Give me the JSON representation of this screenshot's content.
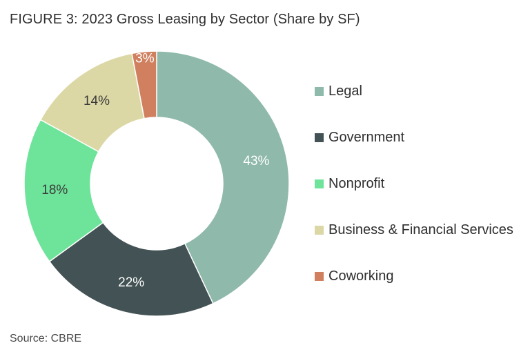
{
  "title": "FIGURE 3: 2023 Gross Leasing by Sector (Share by SF)",
  "source": "Source: CBRE",
  "chart_data": {
    "type": "pie",
    "variant": "donut",
    "title": "FIGURE 3: 2023 Gross Leasing by Sector (Share by SF)",
    "legend_position": "right",
    "series": [
      {
        "name": "Legal",
        "value": 43,
        "label": "43%",
        "color": "#8fb9aa",
        "label_color": "#ffffff"
      },
      {
        "name": "Government",
        "value": 22,
        "label": "22%",
        "color": "#435254",
        "label_color": "#ffffff"
      },
      {
        "name": "Nonprofit",
        "value": 18,
        "label": "18%",
        "color": "#6ee39a",
        "label_color": "#3a3a3a"
      },
      {
        "name": "Business & Financial Services",
        "value": 14,
        "label": "14%",
        "color": "#dcd8a5",
        "label_color": "#3a3a3a"
      },
      {
        "name": "Coworking",
        "value": 3,
        "label": "3%",
        "color": "#d0805f",
        "label_color": "#ffffff"
      }
    ]
  }
}
